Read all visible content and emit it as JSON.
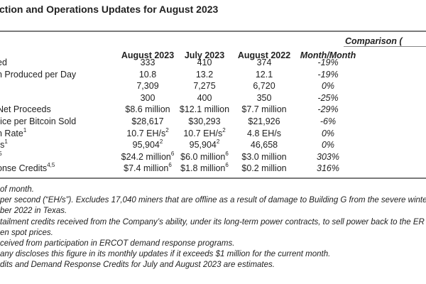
{
  "title": "ction and Operations Updates for August 2023",
  "comparison_header": "Comparison (",
  "columns": [
    "August 2023",
    "July 2023",
    "August 2022",
    "Month/Month"
  ],
  "rows": [
    {
      "label": "ed",
      "label_sup": "",
      "v": [
        "333",
        "410",
        "374",
        "-19%"
      ],
      "s": [
        "",
        "",
        "",
        ""
      ]
    },
    {
      "label": "n Produced per Day",
      "label_sup": "",
      "v": [
        "10.8",
        "13.2",
        "12.1",
        "-19%"
      ],
      "s": [
        "",
        "",
        "",
        ""
      ]
    },
    {
      "label": "",
      "label_sup": "",
      "v": [
        "7,309",
        "7,275",
        "6,720",
        "0%"
      ],
      "s": [
        "",
        "",
        "",
        ""
      ]
    },
    {
      "label": "",
      "label_sup": "",
      "v": [
        "300",
        "400",
        "350",
        "-25%"
      ],
      "s": [
        "",
        "",
        "",
        ""
      ]
    },
    {
      "label": "Net Proceeds",
      "label_sup": "",
      "v": [
        "$8.6 million",
        "$12.1 million",
        "$7.7 million",
        "-29%"
      ],
      "s": [
        "",
        "",
        "",
        ""
      ]
    },
    {
      "label": "rice per Bitcoin Sold",
      "label_sup": "",
      "v": [
        "$28,617",
        "$30,293",
        "$21,926",
        "-6%"
      ],
      "s": [
        "",
        "",
        "",
        ""
      ]
    },
    {
      "label": "n Rate",
      "label_sup": "1",
      "v": [
        "10.7 EH/s",
        "10.7 EH/s",
        "4.8 EH/s",
        "0%"
      ],
      "s": [
        "2",
        "2",
        "",
        ""
      ]
    },
    {
      "label": "rs",
      "label_sup": "1",
      "v": [
        "95,904",
        "95,904",
        "46,658",
        "0%"
      ],
      "s": [
        "2",
        "2",
        "",
        ""
      ]
    },
    {
      "label": "",
      "label_sup": ",5",
      "v": [
        "$24.2 million",
        "$6.0 million",
        "$3.0 million",
        "303%"
      ],
      "s": [
        "6",
        "6",
        "",
        ""
      ]
    },
    {
      "label": "onse Credits",
      "label_sup": "4,5",
      "v": [
        "$7.4 million",
        "$1.8 million",
        "$0.2 million",
        "316%"
      ],
      "s": [
        "6",
        "6",
        "",
        ""
      ]
    }
  ],
  "footnotes": [
    "of month.",
    "per second (“EH/s”). Excludes 17,040 miners that are offline as a result of damage to Building G from the severe winter",
    "ber 2022 in Texas.",
    "tailment credits received from the Company’s ability, under its long-term power contracts, to sell power back to the ER",
    "en spot prices.",
    "ceived from participation in ERCOT demand response programs.",
    "any discloses this figure in its monthly updates if it exceeds $1 million for the current month.",
    "dits and Demand Response Credits for July and August 2023 are estimates."
  ]
}
